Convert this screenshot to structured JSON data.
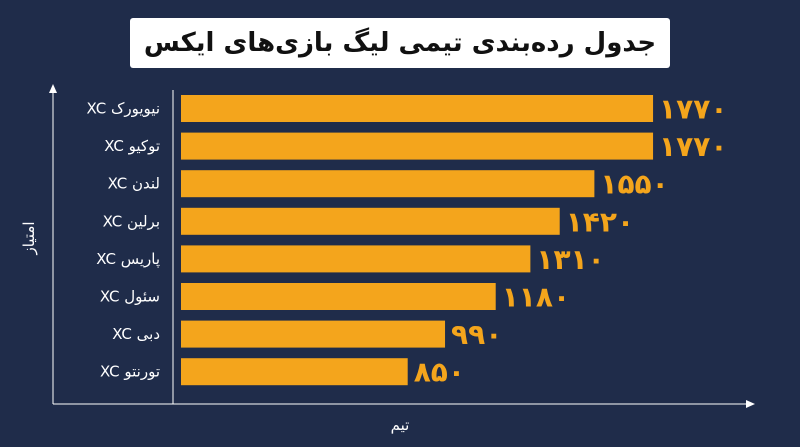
{
  "chart_data": {
    "type": "bar",
    "orientation": "horizontal",
    "title": "جدول رده‌بندی تیمی لیگ بازی‌های ایکس",
    "xlabel": "تیم",
    "ylabel": "امتیاز",
    "categories": [
      "XC نیویورک",
      "XC توکیو",
      "XC لندن",
      "XC برلین",
      "XC پاریس",
      "XC سئول",
      "XC دبی",
      "XC تورنتو"
    ],
    "values": [
      1770,
      1770,
      1550,
      1420,
      1310,
      1180,
      990,
      850
    ],
    "value_labels": [
      "۱۷۷۰",
      "۱۷۷۰",
      "۱۵۵۰",
      "۱۴۲۰",
      "۱۳۱۰",
      "۱۱۸۰",
      "۹۹۰",
      "۸۵۰"
    ],
    "xlim": [
      0,
      2400
    ],
    "grid": false,
    "bar_color": "#f4a51c",
    "background_color": "#1f2c4a"
  }
}
